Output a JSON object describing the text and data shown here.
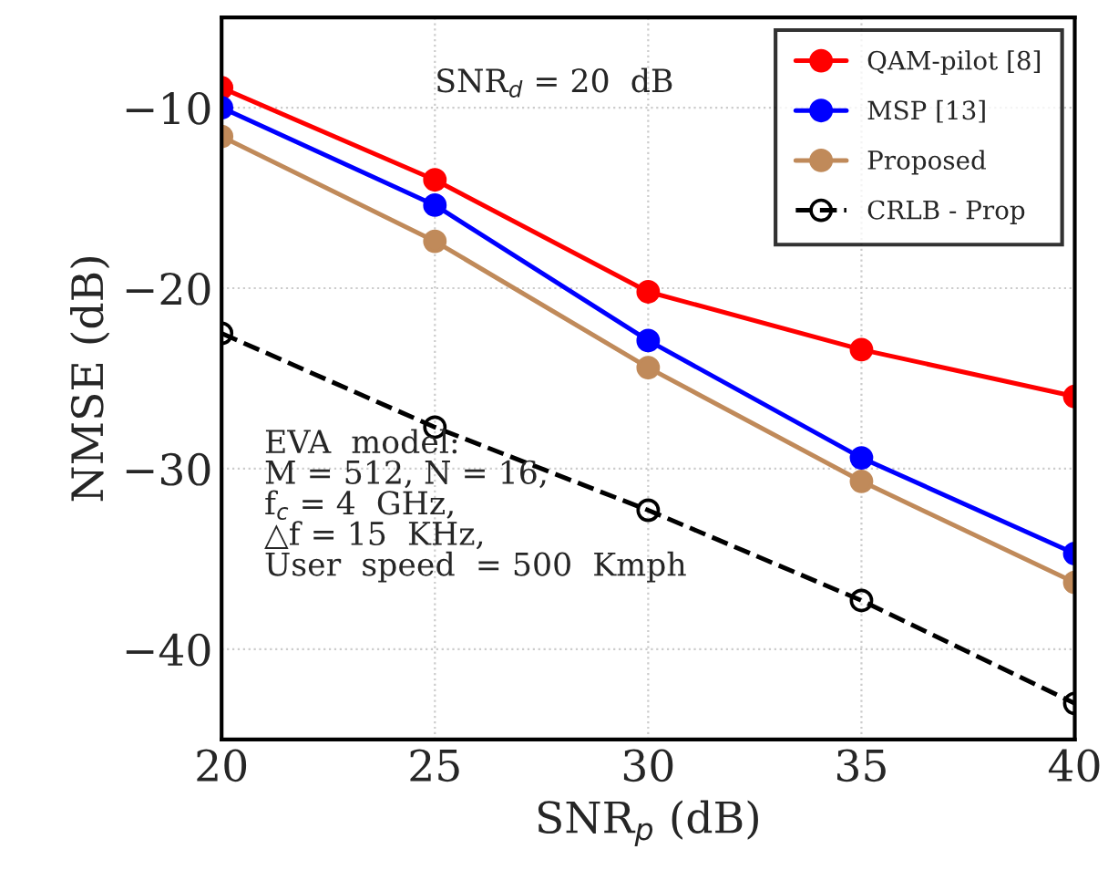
{
  "chart_data": {
    "type": "line",
    "xlabel": "SNR$_{p}$ (dB)",
    "ylabel": "NMSE (dB)",
    "x": [
      20,
      25,
      30,
      35,
      40
    ],
    "xlim": [
      20,
      40
    ],
    "xticks": [
      20,
      25,
      30,
      35,
      40
    ],
    "ylim": [
      -45,
      -5
    ],
    "yticks": [
      {
        "value": -10,
        "label": "−10"
      },
      {
        "value": -20,
        "label": "−20"
      },
      {
        "value": -30,
        "label": "−30"
      },
      {
        "value": -40,
        "label": "−40"
      }
    ],
    "grid": true,
    "legend": "top right",
    "marker": "circle",
    "series": [
      {
        "name": "QAM-pilot [8]",
        "color": "#ff0000",
        "values": [
          -8.9,
          -14.0,
          -20.2,
          -23.4,
          -26.0
        ]
      },
      {
        "name": "MSP [13]",
        "color": "#0000ff",
        "values": [
          -10.0,
          -15.4,
          -22.9,
          -29.4,
          -34.7
        ]
      },
      {
        "name": "Proposed",
        "color": "#c08a5a",
        "values": [
          -11.6,
          -17.4,
          -24.4,
          -30.7,
          -36.3
        ]
      },
      {
        "name": "CRLB - Prop",
        "color": "#000000",
        "line_style": "dashed",
        "values": [
          -22.5,
          -27.7,
          -32.3,
          -37.3,
          -43.0
        ]
      }
    ],
    "annotations": [
      "SNR$_{d}$ = 20  dB",
      "EVA  model:\nM = 512, N = 16,\nf$_{c}$ = 4  GHz,\n△f = 15  KHz,\nUser  speed  = 500  Kmph"
    ]
  }
}
